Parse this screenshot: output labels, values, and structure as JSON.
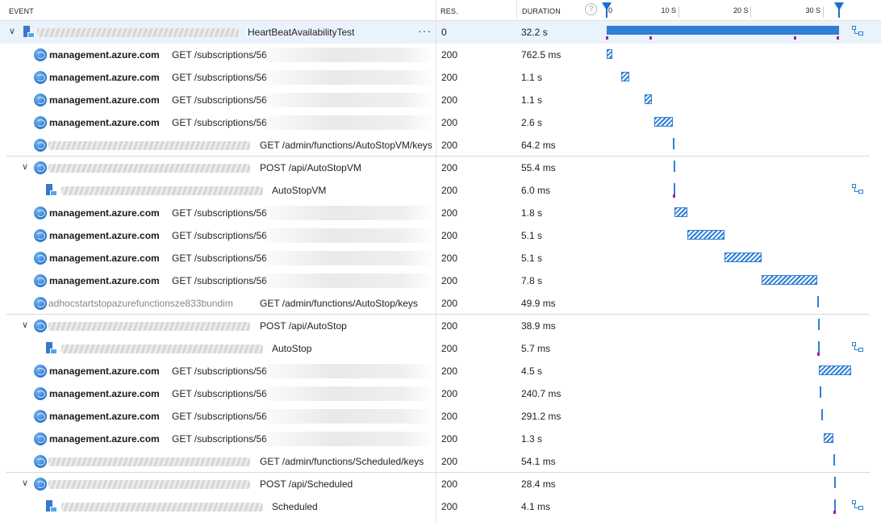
{
  "columns": {
    "event": "EVENT",
    "res": "RES.",
    "duration": "DURATION"
  },
  "timeline": {
    "ticks": [
      "0",
      "10 S",
      "20 S",
      "30 S"
    ],
    "max_seconds": 32.2
  },
  "rows": [
    {
      "kind": "root",
      "name": "HeartBeatAvailabilityTest",
      "res": "0",
      "duration": "32.2 s",
      "start": 0.0,
      "dur": 32.2
    },
    {
      "kind": "dep",
      "host": "management.azure.com",
      "op": "GET /subscriptions/56",
      "res": "200",
      "duration": "762.5 ms",
      "start": 0.0,
      "dur": 0.76
    },
    {
      "kind": "dep",
      "host": "management.azure.com",
      "op": "GET /subscriptions/56",
      "res": "200",
      "duration": "1.1 s",
      "start": 2.0,
      "dur": 1.1
    },
    {
      "kind": "dep",
      "host": "management.azure.com",
      "op": "GET /subscriptions/56",
      "res": "200",
      "duration": "1.1 s",
      "start": 5.2,
      "dur": 1.1
    },
    {
      "kind": "dep",
      "host": "management.azure.com",
      "op": "GET /subscriptions/56",
      "res": "200",
      "duration": "2.6 s",
      "start": 6.6,
      "dur": 2.6
    },
    {
      "kind": "call",
      "op": "GET /admin/functions/AutoStopVM/keys",
      "res": "200",
      "duration": "64.2 ms",
      "start": 9.2,
      "dur": 0.064
    },
    {
      "kind": "group",
      "op": "POST /api/AutoStopVM",
      "res": "200",
      "duration": "55.4 ms",
      "start": 9.3,
      "dur": 0.055
    },
    {
      "kind": "req",
      "op": "AutoStopVM",
      "res": "200",
      "duration": "6.0 ms",
      "start": 9.3,
      "dur": 0.006
    },
    {
      "kind": "dep",
      "host": "management.azure.com",
      "op": "GET /subscriptions/56",
      "res": "200",
      "duration": "1.8 s",
      "start": 9.4,
      "dur": 1.8
    },
    {
      "kind": "dep",
      "host": "management.azure.com",
      "op": "GET /subscriptions/56",
      "res": "200",
      "duration": "5.1 s",
      "start": 11.2,
      "dur": 5.1
    },
    {
      "kind": "dep",
      "host": "management.azure.com",
      "op": "GET /subscriptions/56",
      "res": "200",
      "duration": "5.1 s",
      "start": 16.3,
      "dur": 5.1
    },
    {
      "kind": "dep",
      "host": "management.azure.com",
      "op": "GET /subscriptions/56",
      "res": "200",
      "duration": "7.8 s",
      "start": 21.4,
      "dur": 7.8
    },
    {
      "kind": "callx",
      "prefix": "adhocstartstopazurefunctionsze833bundim",
      "op": "GET /admin/functions/AutoStop/keys",
      "res": "200",
      "duration": "49.9 ms",
      "start": 29.2,
      "dur": 0.05
    },
    {
      "kind": "group",
      "op": "POST /api/AutoStop",
      "res": "200",
      "duration": "38.9 ms",
      "start": 29.3,
      "dur": 0.039
    },
    {
      "kind": "req",
      "op": "AutoStop",
      "res": "200",
      "duration": "5.7 ms",
      "start": 29.3,
      "dur": 0.006
    },
    {
      "kind": "dep",
      "host": "management.azure.com",
      "op": "GET /subscriptions/56",
      "res": "200",
      "duration": "4.5 s",
      "start": 29.4,
      "dur": 4.5
    },
    {
      "kind": "dep",
      "host": "management.azure.com",
      "op": "GET /subscriptions/56",
      "res": "200",
      "duration": "240.7 ms",
      "start": 29.5,
      "dur": 0.24
    },
    {
      "kind": "dep",
      "host": "management.azure.com",
      "op": "GET /subscriptions/56",
      "res": "200",
      "duration": "291.2 ms",
      "start": 29.7,
      "dur": 0.29
    },
    {
      "kind": "dep",
      "host": "management.azure.com",
      "op": "GET /subscriptions/56",
      "res": "200",
      "duration": "1.3 s",
      "start": 30.1,
      "dur": 1.3
    },
    {
      "kind": "call",
      "op": "GET /admin/functions/Scheduled/keys",
      "res": "200",
      "duration": "54.1 ms",
      "start": 31.4,
      "dur": 0.054
    },
    {
      "kind": "group",
      "op": "POST /api/Scheduled",
      "res": "200",
      "duration": "28.4 ms",
      "start": 31.5,
      "dur": 0.028
    },
    {
      "kind": "req",
      "op": "Scheduled",
      "res": "200",
      "duration": "4.1 ms",
      "start": 31.5,
      "dur": 0.004
    }
  ],
  "icons": {
    "expand": "chevron-down-icon",
    "dependency": "globe-icon",
    "request": "app-insights-icon",
    "trace": "trace-icon",
    "help": "help-icon"
  },
  "colors": {
    "accent": "#2f7fd6",
    "marker": "#1a6ed6",
    "selected": "#eaf2fc",
    "point_marker": "#a020a0"
  }
}
